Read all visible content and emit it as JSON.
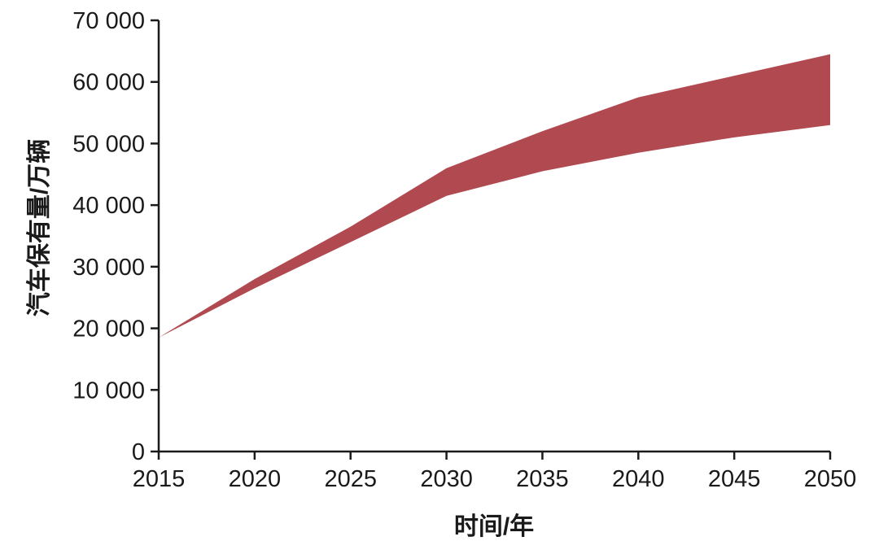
{
  "chart_data": {
    "type": "area",
    "title": "",
    "xlabel": "时间/年",
    "ylabel": "汽车保有量/万辆",
    "x": [
      2015,
      2020,
      2025,
      2030,
      2035,
      2040,
      2045,
      2050
    ],
    "series": [
      {
        "name": "upper",
        "values": [
          18500,
          28000,
          36500,
          46000,
          52000,
          57500,
          61000,
          64500
        ]
      },
      {
        "name": "lower",
        "values": [
          18500,
          26500,
          34000,
          41500,
          45500,
          48500,
          51000,
          53000
        ]
      }
    ],
    "xlim": [
      2015,
      2050
    ],
    "ylim": [
      0,
      70000
    ],
    "x_ticks": [
      2015,
      2020,
      2025,
      2030,
      2035,
      2040,
      2045,
      2050
    ],
    "x_tick_labels": [
      "2015",
      "2020",
      "2025",
      "2030",
      "2035",
      "2040",
      "2045",
      "2050"
    ],
    "y_ticks": [
      0,
      10000,
      20000,
      30000,
      40000,
      50000,
      60000,
      70000
    ],
    "y_tick_labels": [
      "0",
      "10 000",
      "20 000",
      "30 000",
      "40 000",
      "50 000",
      "60 000",
      "70 000"
    ],
    "band_color": "#b04a50",
    "axis_color": "#1a1a1a",
    "grid": false,
    "legend": "none"
  }
}
